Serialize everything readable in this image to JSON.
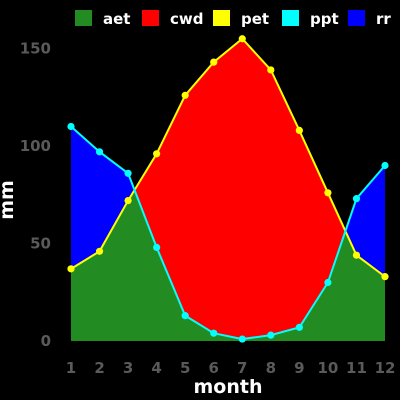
{
  "chart_data": {
    "type": "area",
    "xlabel": "month",
    "ylabel": "mm",
    "x": [
      1,
      2,
      3,
      4,
      5,
      6,
      7,
      8,
      9,
      10,
      11,
      12
    ],
    "xlim": [
      1,
      12
    ],
    "ylim": [
      0,
      160
    ],
    "yticks": [
      0,
      50,
      100,
      150
    ],
    "xticks": [
      1,
      2,
      3,
      4,
      5,
      6,
      7,
      8,
      9,
      10,
      11,
      12
    ],
    "grid": false,
    "legend_position": "top",
    "legend": [
      "aet",
      "cwd",
      "pet",
      "ppt",
      "rr"
    ],
    "series": [
      {
        "name": "pet",
        "role": "line",
        "color": "#ffff00",
        "values": [
          37,
          46,
          72,
          96,
          126,
          143,
          155,
          139,
          108,
          76,
          44,
          33
        ]
      },
      {
        "name": "ppt",
        "role": "line",
        "color": "#00ffff",
        "values": [
          110,
          97,
          86,
          48,
          13,
          4,
          1,
          3,
          7,
          30,
          73,
          90
        ]
      },
      {
        "name": "aet",
        "role": "fill",
        "color": "#228b22",
        "description": "area from 0 up to min(pet, ppt)"
      },
      {
        "name": "cwd",
        "role": "fill",
        "color": "#ff0000",
        "description": "area between ppt and pet where pet > ppt"
      },
      {
        "name": "rr",
        "role": "fill",
        "color": "#0000ff",
        "description": "area between pet and ppt where ppt > pet"
      }
    ]
  }
}
